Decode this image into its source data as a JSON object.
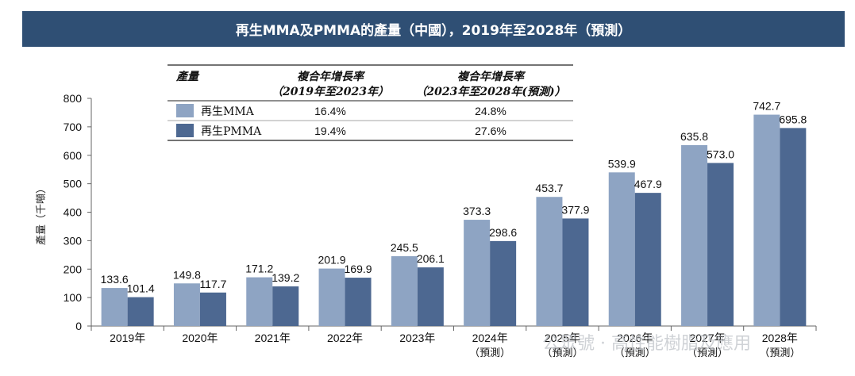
{
  "title": "再生MMA及PMMA的產量（中國），2019年至2028年（預測）",
  "colors": {
    "mma": "#8ea4c3",
    "pmma": "#4d6891",
    "title_bg": "#2f4f74"
  },
  "chart_data": {
    "type": "bar",
    "categories": [
      "2019年",
      "2020年",
      "2021年",
      "2022年",
      "2023年",
      "2024年",
      "2025年",
      "2026年",
      "2027年",
      "2028年"
    ],
    "forecast_note": "（預測）",
    "forecast_from_index": 5,
    "series": [
      {
        "name": "再生MMA",
        "values": [
          133.6,
          149.8,
          171.2,
          201.9,
          245.5,
          373.3,
          453.7,
          539.9,
          635.8,
          742.7
        ]
      },
      {
        "name": "再生PMMA",
        "values": [
          101.4,
          117.7,
          139.2,
          169.9,
          206.1,
          298.6,
          377.9,
          467.9,
          573.0,
          695.8
        ]
      }
    ],
    "value_labels": [
      [
        "133.6",
        "149.8",
        "171.2",
        "201.9",
        "245.5",
        "373.3",
        "453.7",
        "539.9",
        "635.8",
        "742.7"
      ],
      [
        "101.4",
        "117.7",
        "139.2",
        "169.9",
        "206.1",
        "298.6",
        "377.9",
        "467.9",
        "573.0",
        "695.8"
      ]
    ],
    "ylabel": "產量（千噸）",
    "ylim": [
      0,
      800
    ],
    "yticks": [
      0,
      100,
      200,
      300,
      400,
      500,
      600,
      700,
      800
    ],
    "grid": false
  },
  "cagr_table": {
    "header": {
      "col0": "產量",
      "col1_line1": "複合年增長率",
      "col1_line2": "（2019年至2023年）",
      "col2_line1": "複合年增長率",
      "col2_line2": "（2023年至2028年(預測)）"
    },
    "rows": [
      {
        "label": "再生MMA",
        "cagr_2019_2023": "16.4%",
        "cagr_2023_2028": "24.8%"
      },
      {
        "label": "再生PMMA",
        "cagr_2019_2023": "19.4%",
        "cagr_2023_2028": "27.6%"
      }
    ]
  },
  "watermark": "公眾號 · 高性能樹脂及應用"
}
